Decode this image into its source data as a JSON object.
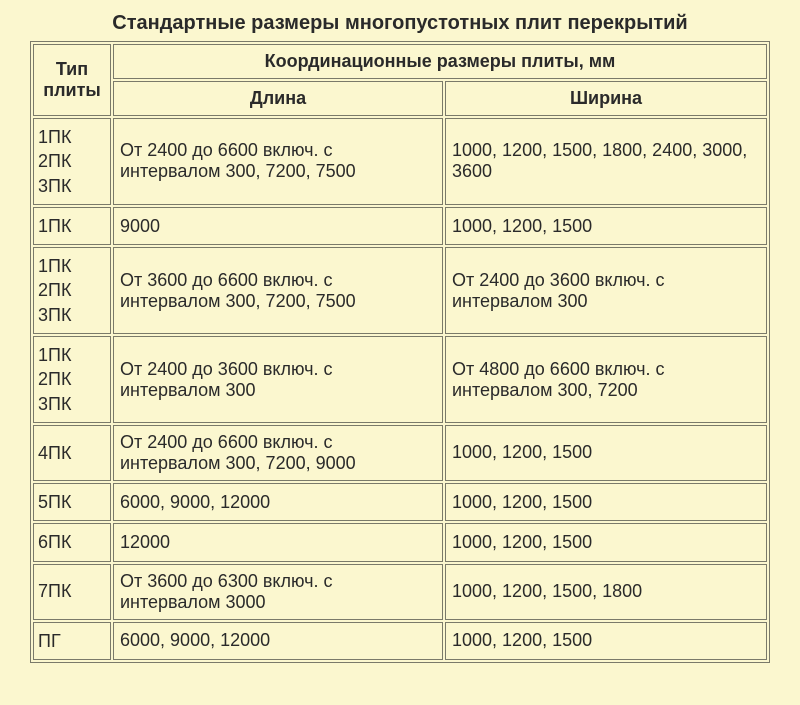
{
  "title": "Стандартные размеры многопустотных плит перекрытий",
  "headers": {
    "type": "Тип плиты",
    "coord": "Координационные размеры плиты, мм",
    "length": "Длина",
    "width": "Ширина"
  },
  "rows": [
    {
      "type_lines": [
        "1ПК",
        "2ПК",
        "3ПК"
      ],
      "length": "От 2400 до 6600 включ. с интервалом 300, 7200, 7500",
      "width": "1000, 1200, 1500, 1800, 2400, 3000, 3600"
    },
    {
      "type_lines": [
        "1ПК"
      ],
      "length": "9000",
      "width": "1000, 1200, 1500"
    },
    {
      "type_lines": [
        "1ПК",
        "2ПК",
        "3ПК"
      ],
      "length": "От 3600 до 6600 включ. с интервалом 300, 7200, 7500",
      "width": "От 2400 до 3600 включ. с интервалом 300"
    },
    {
      "type_lines": [
        "1ПК",
        "2ПК",
        "3ПК"
      ],
      "length": "От 2400 до 3600 включ. с интервалом 300",
      "width": "От 4800 до 6600 включ. с интервалом 300, 7200"
    },
    {
      "type_lines": [
        "4ПК"
      ],
      "length": "От 2400 до 6600 включ. с интервалом 300, 7200, 9000",
      "width": "1000, 1200, 1500"
    },
    {
      "type_lines": [
        "5ПК"
      ],
      "length": "6000, 9000, 12000",
      "width": "1000, 1200, 1500"
    },
    {
      "type_lines": [
        "6ПК"
      ],
      "length": "12000",
      "width": "1000, 1200, 1500"
    },
    {
      "type_lines": [
        "7ПК"
      ],
      "length": "От 3600 до 6300 включ. с интервалом 3000",
      "width": "1000, 1200, 1500, 1800"
    },
    {
      "type_lines": [
        "ПГ"
      ],
      "length": "6000, 9000, 12000",
      "width": "1000, 1200, 1500"
    }
  ]
}
